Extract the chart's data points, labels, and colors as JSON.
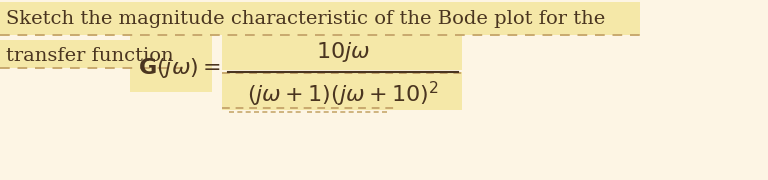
{
  "background_color": "#fdf5e4",
  "text_line1": "Sketch the magnitude characteristic of the Bode plot for the",
  "text_line2": "transfer function",
  "text_color": "#4a3520",
  "text_fontsize": 14.0,
  "formula_fontsize": 16.0,
  "highlight_color": "#f5e8a8",
  "dashed_color": "#c8a96e",
  "fig_width": 7.68,
  "fig_height": 1.8,
  "dpi": 100
}
